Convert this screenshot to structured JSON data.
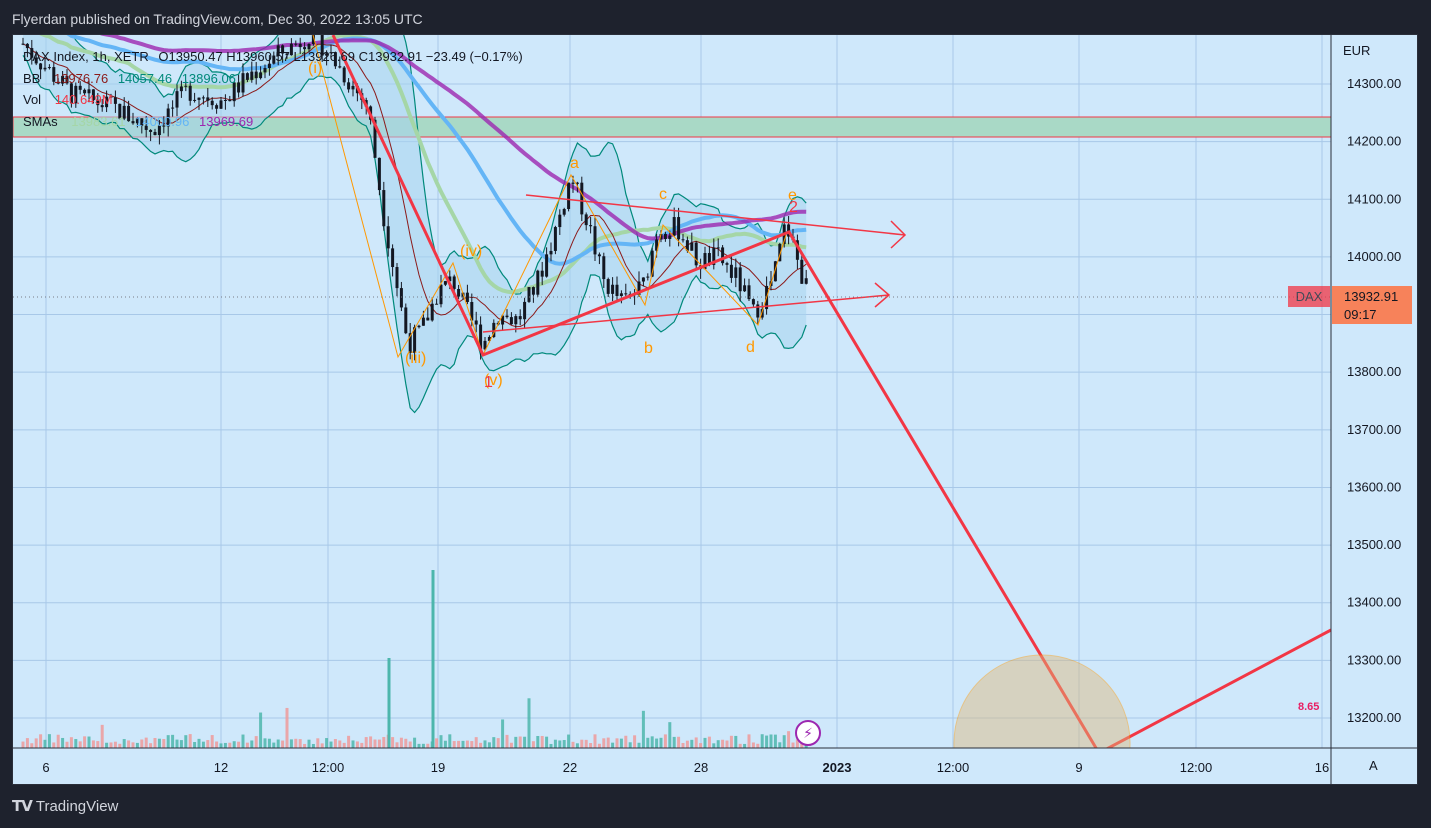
{
  "header": {
    "title": "Flyerdan published on TradingView.com, Dec 30, 2022 13:05 UTC"
  },
  "legend": {
    "symbol": "DAX Index, 1h, XETR",
    "ohlc": "O13950.47 H13960.57 L13926.69 C13932.91 −23.49 (−0.17%)",
    "bb_label": "BB",
    "bb_values": [
      "13976.76",
      "14057.46",
      "13896.06"
    ],
    "vol_label": "Vol",
    "vol_value": "140.649M",
    "sma_label": "SMAs",
    "sma_values": [
      "13983.61",
      "14000.96",
      "13969.69"
    ]
  },
  "price_axis": {
    "currency": "EUR",
    "ticks": [
      "14300.00",
      "14200.00",
      "14100.00",
      "14000.00",
      "13900.00",
      "13800.00",
      "13700.00",
      "13600.00",
      "13500.00",
      "13400.00",
      "13300.00",
      "13200.00"
    ],
    "last_symbol": "DAX",
    "last_price": "13932.91",
    "countdown": "09:17",
    "position_label": "8.65"
  },
  "time_axis": {
    "ticks": [
      "6",
      "12",
      "12:00",
      "19",
      "22",
      "28",
      "2023",
      "12:00",
      "9",
      "12:00",
      "16"
    ],
    "auto_label": "A"
  },
  "annotations": {
    "wave_labels": [
      "(i)",
      "(iv)",
      "(iii)",
      "(v)",
      "a",
      "b",
      "c",
      "d",
      "e",
      "1",
      "2"
    ]
  },
  "colors": {
    "background": "#cfe8fb",
    "candle": "#131722",
    "projection": "#f23645",
    "sma_fast": "#a5d6a7",
    "sma_mid": "#64b5f6",
    "sma_slow": "#9c27b0",
    "bb_band": "#00897b",
    "bb_basis": "#8b1a1a",
    "wave": "#ff9800"
  },
  "icons": {
    "flash": "flash-icon",
    "brand": "tradingview-logo"
  },
  "footer": {
    "brand": "TradingView"
  },
  "chart_data": {
    "type": "candlestick",
    "instrument": "DAX Index",
    "interval": "1h",
    "ylim": [
      13160,
      14380
    ],
    "close_path": [
      {
        "x": "Dec 6",
        "y": 14310
      },
      {
        "x": "Dec 8",
        "y": 14260
      },
      {
        "x": "Dec 9",
        "y": 14230
      },
      {
        "x": "Dec 12",
        "y": 14290
      },
      {
        "x": "Dec 13",
        "y": 14310
      },
      {
        "x": "Dec 14",
        "y": 14360
      },
      {
        "x": "Dec 15",
        "y": 14300
      },
      {
        "x": "Dec 16",
        "y": 14020
      },
      {
        "x": "Dec 16",
        "y": 13880
      },
      {
        "x": "Dec 19",
        "y": 13950
      },
      {
        "x": "Dec 20",
        "y": 13840
      },
      {
        "x": "Dec 21",
        "y": 13930
      },
      {
        "x": "Dec 22",
        "y": 14140
      },
      {
        "x": "Dec 23",
        "y": 13920
      },
      {
        "x": "Dec 27",
        "y": 14040
      },
      {
        "x": "Dec 28",
        "y": 13970
      },
      {
        "x": "Dec 29",
        "y": 13900
      },
      {
        "x": "Dec 30",
        "y": 14060
      },
      {
        "x": "Dec 30",
        "y": 13932.91
      }
    ],
    "volume_spikes": [
      {
        "x": "Dec 16",
        "value": "high"
      },
      {
        "x": "Dec 19",
        "value": "highest"
      }
    ],
    "projection": [
      {
        "x": "Dec 20",
        "y": 13830
      },
      {
        "x": "Dec 30",
        "y": 14045
      },
      {
        "x": "Jan 9",
        "y": 13170
      },
      {
        "x": "Jan 16",
        "y": 13350
      }
    ],
    "triangle": {
      "upper": [
        {
          "x": "Dec 21",
          "y": 14110
        },
        {
          "x": "Jan 2",
          "y": 14040
        }
      ],
      "lower": [
        {
          "x": "Dec 20",
          "y": 13870
        },
        {
          "x": "Jan 2",
          "y": 13940
        }
      ]
    },
    "resistance_zone": [
      14210,
      14240
    ],
    "wave_points": [
      {
        "label": "(i)",
        "y": 14330
      },
      {
        "label": "(iii)",
        "y": 13830
      },
      {
        "label": "(iv)",
        "y": 14000
      },
      {
        "label": "(v)",
        "y": 13800
      },
      {
        "label": "a",
        "y": 14150
      },
      {
        "label": "b",
        "y": 13880
      },
      {
        "label": "c",
        "y": 14060
      },
      {
        "label": "d",
        "y": 13870
      },
      {
        "label": "e",
        "y": 14090
      }
    ],
    "last": 13932.91
  }
}
